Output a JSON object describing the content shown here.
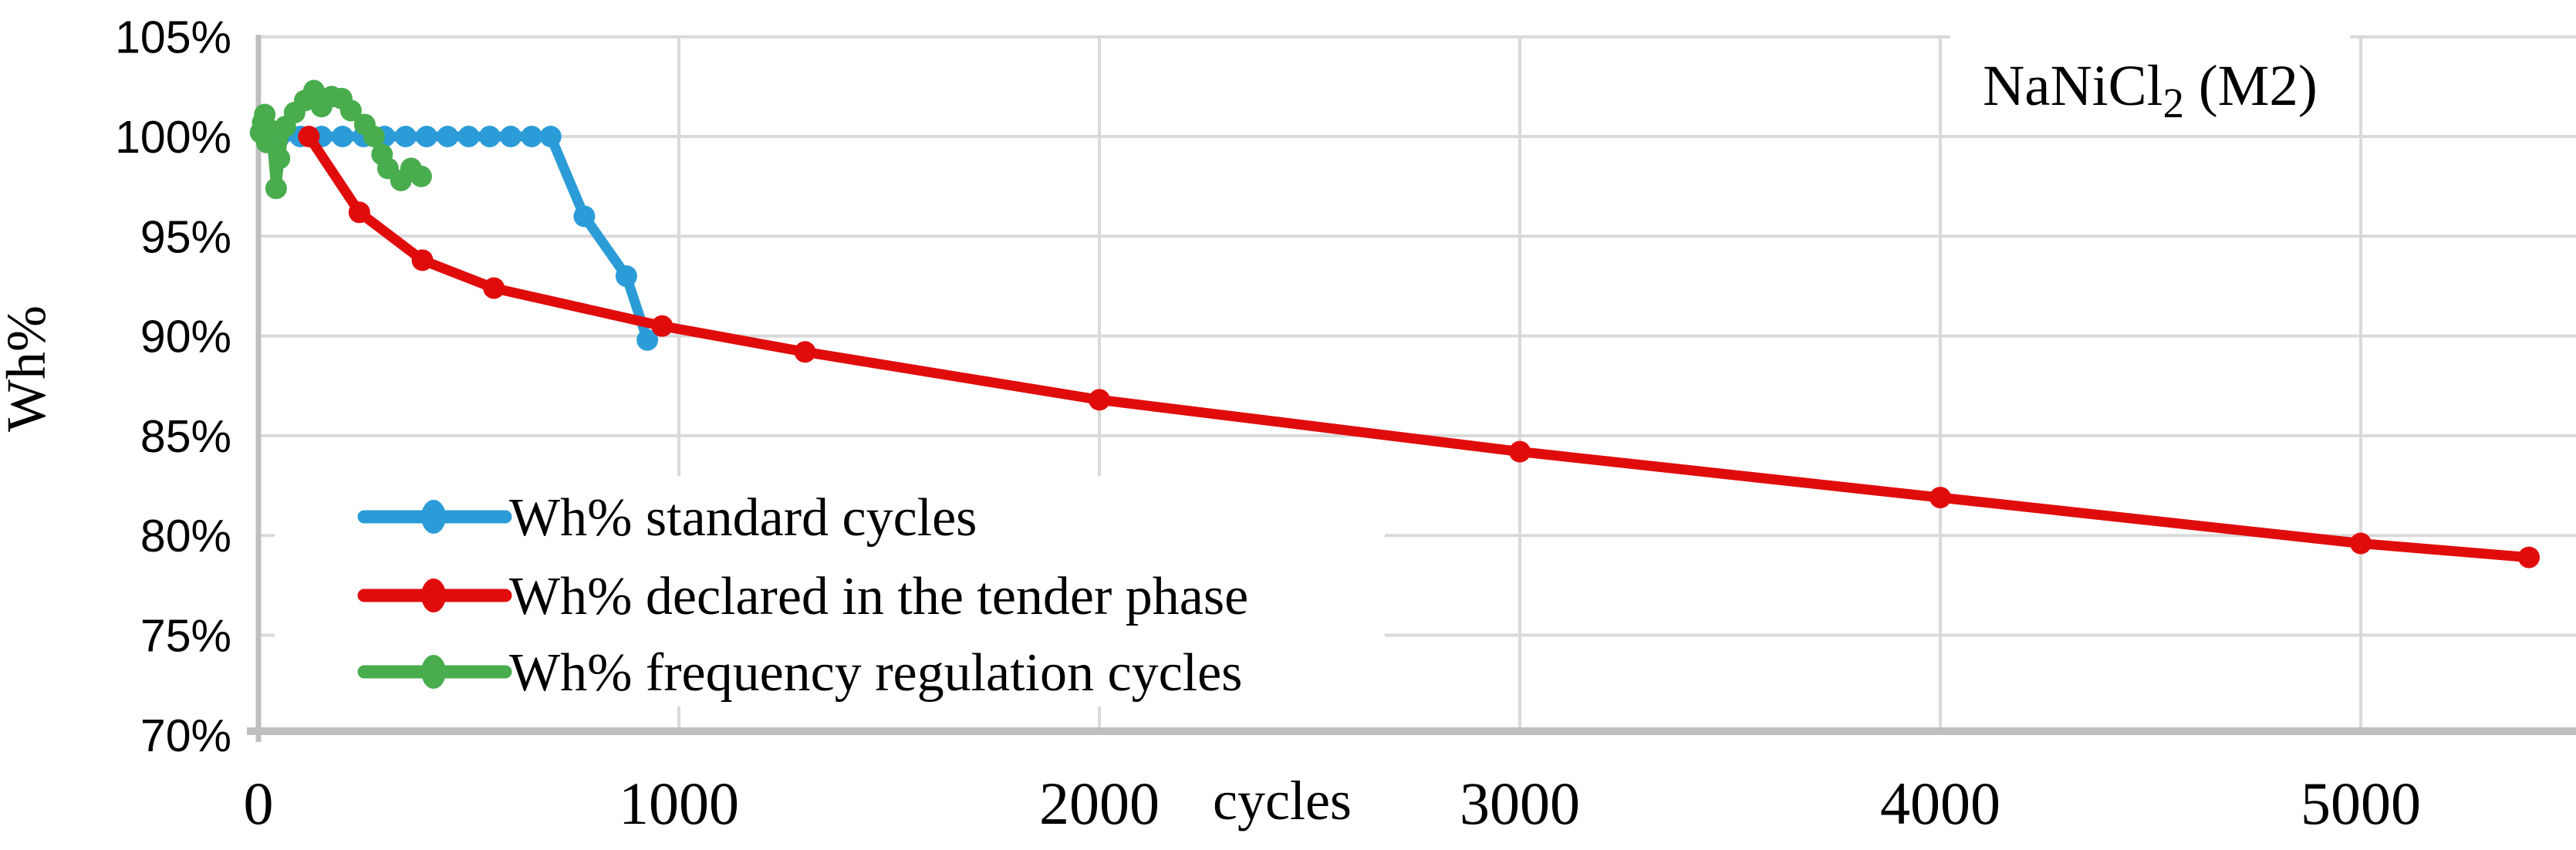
{
  "title": {
    "formula_base": "NaNiCl",
    "formula_sub": "2",
    "variant": " (M2)"
  },
  "axes": {
    "y_title": "Wh%",
    "x_title": "cycles",
    "y_ticks": [
      {
        "label": "105%",
        "value": 105
      },
      {
        "label": "100%",
        "value": 100
      },
      {
        "label": "95%",
        "value": 95
      },
      {
        "label": "90%",
        "value": 90
      },
      {
        "label": "85%",
        "value": 85
      },
      {
        "label": "80%",
        "value": 80
      },
      {
        "label": "75%",
        "value": 75
      },
      {
        "label": "70%",
        "value": 70
      }
    ],
    "x_ticks": [
      {
        "label": "0",
        "value": 0
      },
      {
        "label": "1000",
        "value": 1000
      },
      {
        "label": "2000",
        "value": 2000
      },
      {
        "label": "3000",
        "value": 3000
      },
      {
        "label": "4000",
        "value": 4000
      },
      {
        "label": "5000",
        "value": 5000
      }
    ]
  },
  "legend": {
    "entries": [
      {
        "label": "Wh% standard cycles",
        "color": "#2B9CD8"
      },
      {
        "label": "Wh% declared in the tender phase",
        "color": "#E00C0C"
      },
      {
        "label": "Wh% frequency regulation cycles",
        "color": "#49AC4D"
      }
    ]
  },
  "colors": {
    "blue": "#2B9CD8",
    "red": "#E00C0C",
    "green": "#49AC4D",
    "gridline": "#D9D9D9",
    "axis_line": "#BFBFBF",
    "background": "#FFFFFF",
    "text": "#000000"
  },
  "chart_data": {
    "type": "line",
    "title": "NaNiCl2 (M2)",
    "xlabel": "cycles",
    "ylabel": "Wh%",
    "xlim": [
      0,
      5500
    ],
    "ylim": [
      70,
      105
    ],
    "y_tick_step_pct": 5,
    "grid": true,
    "legend_position": "inside bottom-left",
    "series": [
      {
        "name": "Wh% standard cycles",
        "color": "#2B9CD8",
        "points": [
          [
            50,
            100
          ],
          [
            100,
            100
          ],
          [
            150,
            100
          ],
          [
            200,
            100
          ],
          [
            250,
            100
          ],
          [
            300,
            100
          ],
          [
            350,
            100
          ],
          [
            400,
            100
          ],
          [
            450,
            100
          ],
          [
            500,
            100
          ],
          [
            550,
            100
          ],
          [
            600,
            100
          ],
          [
            650,
            100
          ],
          [
            695,
            100
          ],
          [
            775,
            96.0
          ],
          [
            875,
            93.0
          ],
          [
            925,
            89.8
          ]
        ]
      },
      {
        "name": "Wh% declared in the tender phase",
        "color": "#E00C0C",
        "points": [
          [
            120,
            100
          ],
          [
            240,
            96.2
          ],
          [
            390,
            93.8
          ],
          [
            560,
            92.4
          ],
          [
            960,
            90.5
          ],
          [
            1300,
            89.2
          ],
          [
            2000,
            86.8
          ],
          [
            3000,
            84.2
          ],
          [
            4000,
            81.9
          ],
          [
            5000,
            79.6
          ],
          [
            5400,
            78.9
          ]
        ]
      },
      {
        "name": "Wh% frequency regulation cycles",
        "color": "#49AC4D",
        "points": [
          [
            5,
            100.2
          ],
          [
            10,
            100.7
          ],
          [
            15,
            101.1
          ],
          [
            20,
            99.7
          ],
          [
            30,
            100.3
          ],
          [
            42,
            97.4
          ],
          [
            50,
            98.9
          ],
          [
            64,
            100.5
          ],
          [
            86,
            101.2
          ],
          [
            110,
            101.8
          ],
          [
            132,
            102.3
          ],
          [
            150,
            101.5
          ],
          [
            174,
            102.0
          ],
          [
            198,
            101.9
          ],
          [
            220,
            101.3
          ],
          [
            253,
            100.6
          ],
          [
            275,
            100.0
          ],
          [
            294,
            99.1
          ],
          [
            308,
            98.4
          ],
          [
            339,
            97.8
          ],
          [
            363,
            98.4
          ],
          [
            387,
            98.0
          ]
        ]
      }
    ]
  }
}
